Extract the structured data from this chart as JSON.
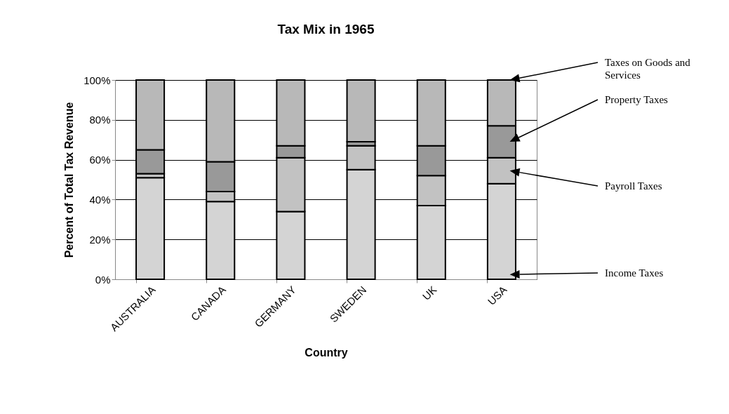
{
  "chart_data": {
    "type": "bar",
    "title": "Tax Mix in 1965",
    "xlabel": "Country",
    "ylabel": "Percent of Total Tax Revenue",
    "categories": [
      "AUSTRALIA",
      "CANADA",
      "GERMANY",
      "SWEDEN",
      "UK",
      "USA"
    ],
    "stacked": true,
    "series": [
      {
        "name": "Income Taxes",
        "color": "#d4d4d4",
        "values": [
          51,
          39,
          34,
          55,
          37,
          48
        ]
      },
      {
        "name": "Payroll Taxes",
        "color": "#c2c2c2",
        "values": [
          2,
          5,
          27,
          12,
          15,
          13
        ]
      },
      {
        "name": "Property Taxes",
        "color": "#999999",
        "values": [
          12,
          15,
          6,
          2,
          15,
          16
        ]
      },
      {
        "name": "Taxes on Goods and Services",
        "color": "#b8b8b8",
        "values": [
          35,
          41,
          33,
          31,
          33,
          23
        ]
      }
    ],
    "ylim": [
      0,
      100
    ],
    "yticks": [
      {
        "value": 0,
        "label": "0%"
      },
      {
        "value": 20,
        "label": "20%"
      },
      {
        "value": 40,
        "label": "40%"
      },
      {
        "value": 60,
        "label": "60%"
      },
      {
        "value": 80,
        "label": "80%"
      },
      {
        "value": 100,
        "label": "100%"
      }
    ],
    "grid": "y"
  }
}
